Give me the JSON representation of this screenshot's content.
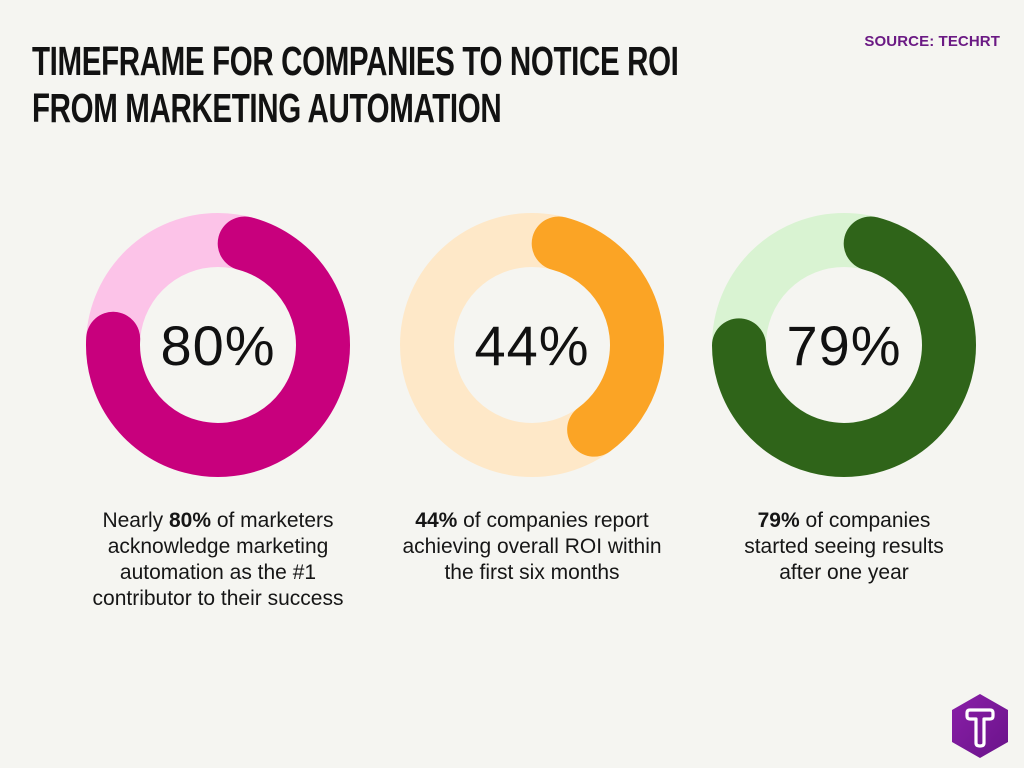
{
  "header": {
    "title_lines": [
      "TIMEFRAME FOR COMPANIES TO NOTICE ROI",
      "FROM MARKETING AUTOMATION"
    ],
    "source": "SOURCE: TECHRT"
  },
  "stats": [
    {
      "value": "80%",
      "percent": 80,
      "color": "#c8007d",
      "track_color": "#fcc3e8",
      "caption_prefix": "Nearly ",
      "caption_bold": "80%",
      "caption_rest": " of marketers acknowledge marketing automation as the #1 contributor to their success"
    },
    {
      "value": "44%",
      "percent": 44,
      "color": "#fba425",
      "track_color": "#fee8c8",
      "caption_prefix": "",
      "caption_bold": "44%",
      "caption_rest": " of companies report achieving overall ROI within the first six months"
    },
    {
      "value": "79%",
      "percent": 79,
      "color": "#2f6419",
      "track_color": "#d9f3d2",
      "caption_prefix": "",
      "caption_bold": "79%",
      "caption_rest": " of companies started seeing results after one year"
    }
  ],
  "logo": {
    "letter": "T",
    "color": "#7c1a9c",
    "icon": "techrt-hexagon-logo"
  },
  "chart_data": {
    "type": "pie",
    "subtype": "donut",
    "title": "Timeframe for Companies to Notice ROI from Marketing Automation",
    "source": "Source: TechRT",
    "categories": [
      "Marketers citing marketing automation as #1 contributor to success",
      "Companies achieving overall ROI within first six months",
      "Companies seeing results after one year"
    ],
    "values": [
      80,
      44,
      79
    ],
    "unit": "%",
    "colors": [
      "#c8007d",
      "#fba425",
      "#2f6419"
    ],
    "track_colors": [
      "#fcc3e8",
      "#fee8c8",
      "#d9f3d2"
    ],
    "legend": "none",
    "annotations": [
      "Nearly 80% of marketers acknowledge marketing automation as the #1 contributor to their success",
      "44% of companies report achieving overall ROI within the first six months",
      "79% of companies started seeing results after one year"
    ]
  }
}
